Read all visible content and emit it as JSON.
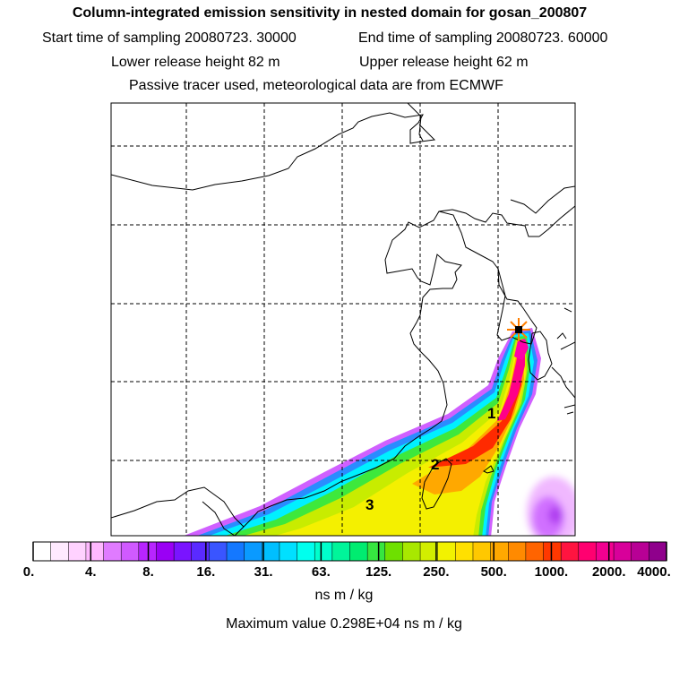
{
  "header": {
    "title": "Column-integrated emission sensitivity in nested domain for gosan_200807",
    "start_label": "Start time of sampling 20080723. 30000",
    "end_label": "End time of sampling 20080723. 60000",
    "lower_release": "Lower release height   82 m",
    "upper_release": "Upper release height   62 m",
    "tracer_info": "Passive tracer used, meteorological data are from ECMWF"
  },
  "map": {
    "markers": [
      {
        "id": "release-site",
        "symbol": "star",
        "color": "#ff7f00"
      }
    ],
    "labels": [
      "1",
      "2",
      "3"
    ]
  },
  "colorbar": {
    "ticks": [
      "0.",
      "4.",
      "8.",
      "16.",
      "31.",
      "63.",
      "125.",
      "250.",
      "500.",
      "1000.",
      "2000.",
      "4000."
    ],
    "units": "ns m / kg",
    "colors": [
      "#ffffff",
      "#ffeaff",
      "#ffd2ff",
      "#ffb8ff",
      "#e07bff",
      "#d05aff",
      "#b825ff",
      "#9a00f5",
      "#7a14ff",
      "#5a2aff",
      "#3a55ff",
      "#1478ff",
      "#0a9aff",
      "#00bfff",
      "#00e0ff",
      "#00ffee",
      "#00ffcc",
      "#00f59a",
      "#00ec70",
      "#36e640",
      "#6ee000",
      "#a8e800",
      "#d2ee00",
      "#f2f200",
      "#ffe000",
      "#ffc800",
      "#ffa800",
      "#ff8a00",
      "#ff6400",
      "#ff3800",
      "#ff1440",
      "#ff0070",
      "#f20090",
      "#d8009a",
      "#b80095",
      "#8f008c"
    ]
  },
  "footer": {
    "max_value": "Maximum value  0.298E+04 ns m / kg"
  }
}
